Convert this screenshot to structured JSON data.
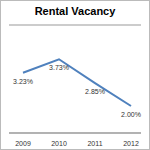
{
  "chart_data": {
    "type": "line",
    "title": "Rental Vacancy",
    "categories": [
      "2009",
      "2010",
      "2011",
      "2012"
    ],
    "values": [
      3.23,
      3.73,
      2.85,
      2.0
    ],
    "value_labels": [
      "3.23%",
      "3.73%",
      "2.85%",
      "2.00%"
    ],
    "data_labels": true,
    "color": "#4f81bd",
    "ylim": [
      1,
      5
    ],
    "yticks": [
      1,
      2,
      3,
      4,
      5
    ],
    "grid": true,
    "tick_labels": "x"
  }
}
